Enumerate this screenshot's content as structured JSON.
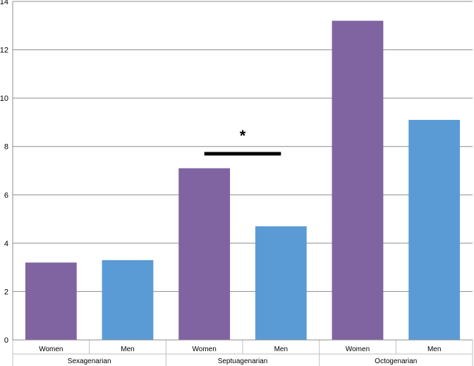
{
  "chart_data": {
    "type": "bar",
    "ylim": [
      0,
      14
    ],
    "yticks": [
      0,
      2,
      4,
      6,
      8,
      10,
      12,
      14
    ],
    "grid": true,
    "groups": [
      {
        "label": "Sexagenarian",
        "bars": [
          {
            "category": "Women",
            "value": 3.2,
            "color": "#8064a2"
          },
          {
            "category": "Men",
            "value": 3.3,
            "color": "#5b9bd5"
          }
        ]
      },
      {
        "label": "Septuagenarian",
        "bars": [
          {
            "category": "Women",
            "value": 7.1,
            "color": "#8064a2"
          },
          {
            "category": "Men",
            "value": 4.7,
            "color": "#5b9bd5"
          }
        ]
      },
      {
        "label": "Octogenarian",
        "bars": [
          {
            "category": "Women",
            "value": 13.2,
            "color": "#8064a2"
          },
          {
            "category": "Men",
            "value": 9.1,
            "color": "#5b9bd5"
          }
        ]
      }
    ],
    "annotations": [
      {
        "text": "*",
        "group": "Septuagenarian",
        "between": [
          "Women",
          "Men"
        ],
        "value": 7.7
      }
    ]
  }
}
